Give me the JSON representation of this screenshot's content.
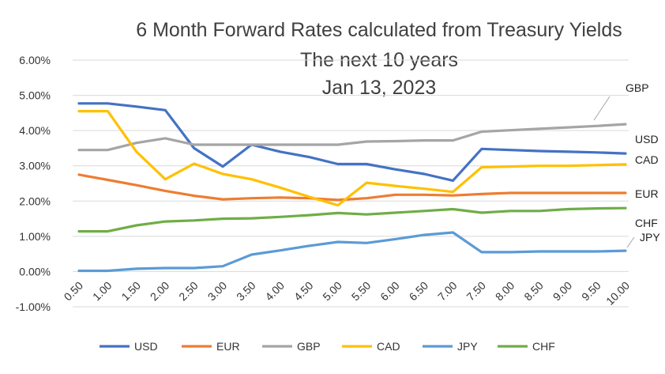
{
  "chart_data": {
    "type": "line",
    "title": "6 Month Forward Rates calculated from Treasury Yields",
    "subtitle_lines": [
      "The next 10 years",
      "Jan 13, 2023"
    ],
    "x": [
      "0.50",
      "1.00",
      "1.50",
      "2.00",
      "2.50",
      "3.00",
      "3.50",
      "4.00",
      "4.50",
      "5.00",
      "5.50",
      "6.00",
      "6.50",
      "7.00",
      "7.50",
      "8.00",
      "8.50",
      "9.00",
      "9.50",
      "10.00"
    ],
    "ylim": [
      -1.0,
      6.0
    ],
    "yticks": [
      "-1.00%",
      "0.00%",
      "1.00%",
      "2.00%",
      "3.00%",
      "4.00%",
      "5.00%",
      "6.00%"
    ],
    "grid": "horizontal",
    "legend_position": "bottom",
    "series": [
      {
        "name": "USD",
        "color": "#4472c4",
        "values": [
          4.77,
          4.77,
          4.68,
          4.58,
          3.5,
          2.98,
          3.6,
          3.4,
          3.25,
          3.05,
          3.05,
          2.9,
          2.77,
          2.58,
          3.48,
          3.45,
          3.42,
          3.4,
          3.38,
          3.35
        ]
      },
      {
        "name": "EUR",
        "color": "#ed7d31",
        "values": [
          2.75,
          2.6,
          2.45,
          2.29,
          2.15,
          2.05,
          2.08,
          2.1,
          2.08,
          2.03,
          2.08,
          2.18,
          2.18,
          2.16,
          2.2,
          2.23,
          2.23,
          2.23,
          2.23,
          2.23
        ]
      },
      {
        "name": "GBP",
        "color": "#a5a5a5",
        "values": [
          3.45,
          3.45,
          3.65,
          3.78,
          3.6,
          3.6,
          3.6,
          3.6,
          3.6,
          3.6,
          3.69,
          3.7,
          3.72,
          3.72,
          3.97,
          4.01,
          4.05,
          4.09,
          4.13,
          4.18
        ]
      },
      {
        "name": "CAD",
        "color": "#ffc000",
        "values": [
          4.55,
          4.55,
          3.4,
          2.62,
          3.06,
          2.77,
          2.62,
          2.38,
          2.12,
          1.88,
          2.52,
          2.43,
          2.35,
          2.26,
          2.96,
          2.98,
          3.0,
          3.0,
          3.02,
          3.04
        ]
      },
      {
        "name": "JPY",
        "color": "#5b9bd5",
        "values": [
          0.02,
          0.02,
          0.08,
          0.1,
          0.1,
          0.15,
          0.48,
          0.6,
          0.73,
          0.84,
          0.81,
          0.92,
          1.04,
          1.11,
          0.55,
          0.55,
          0.57,
          0.57,
          0.57,
          0.59
        ]
      },
      {
        "name": "CHF",
        "color": "#70ad47",
        "values": [
          1.14,
          1.14,
          1.31,
          1.42,
          1.45,
          1.5,
          1.51,
          1.55,
          1.6,
          1.66,
          1.62,
          1.67,
          1.72,
          1.77,
          1.67,
          1.72,
          1.72,
          1.77,
          1.79,
          1.8
        ]
      }
    ],
    "end_labels": [
      "GBP",
      "USD",
      "CAD",
      "EUR",
      "CHF",
      "JPY"
    ]
  }
}
